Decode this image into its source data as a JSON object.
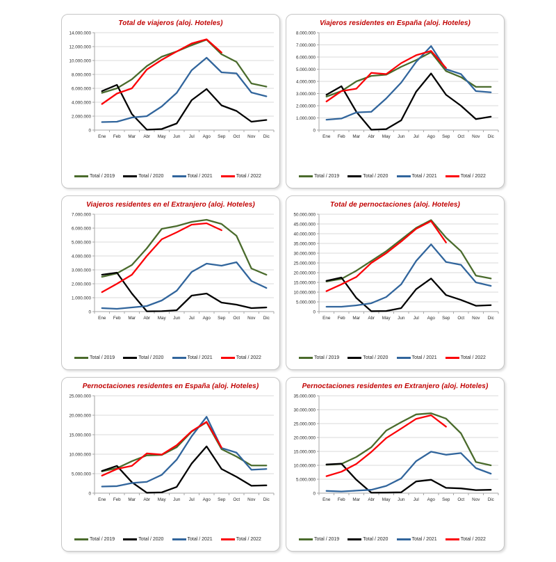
{
  "page": {
    "background": "#ffffff"
  },
  "months": [
    "Ene",
    "Feb",
    "Mar",
    "Abr",
    "May",
    "Jun",
    "Jul",
    "Ago",
    "Sep",
    "Oct",
    "Nov",
    "Dic"
  ],
  "legend_labels": [
    "Total / 2019",
    "Total / 2020",
    "Total / 2021",
    "Total / 2022"
  ],
  "series_colors": {
    "y2019": "#4a6b2c",
    "y2020": "#000000",
    "y2021": "#31659c",
    "y2022": "#fb0006"
  },
  "styles": {
    "title_color": "#c00000",
    "grid_color": "#d9d9d9",
    "axis_color": "#a6a6a6",
    "tick_text_color": "#262626",
    "card_border": "#c6c6c6"
  },
  "chart_data": [
    {
      "type": "line",
      "title": "Total de viajeros (aloj. Hoteles)",
      "ymax": 14000000,
      "ystep": 2000000,
      "categories": [
        "Ene",
        "Feb",
        "Mar",
        "Abr",
        "May",
        "Jun",
        "Jul",
        "Ago",
        "Sep",
        "Oct",
        "Nov",
        "Dic"
      ],
      "series": [
        {
          "name": "Total / 2019",
          "color": "#4a6b2c",
          "values": [
            5350000,
            6000000,
            7300000,
            9200000,
            10550000,
            11300000,
            12200000,
            13000000,
            10900000,
            9800000,
            6700000,
            6250000
          ]
        },
        {
          "name": "Total / 2020",
          "color": "#000000",
          "values": [
            5600000,
            6500000,
            2300000,
            50000,
            150000,
            950000,
            4300000,
            5900000,
            3550000,
            2750000,
            1200000,
            1450000
          ]
        },
        {
          "name": "Total / 2021",
          "color": "#31659c",
          "values": [
            1150000,
            1200000,
            1800000,
            2000000,
            3400000,
            5350000,
            8600000,
            10400000,
            8300000,
            8150000,
            5400000,
            4850000
          ]
        },
        {
          "name": "Total / 2022",
          "color": "#fb0006",
          "values": [
            3750000,
            5250000,
            6000000,
            8700000,
            10100000,
            11300000,
            12450000,
            13050000,
            11150000
          ]
        }
      ]
    },
    {
      "type": "line",
      "title": "Viajeros residentes en España (aloj. Hoteles)",
      "ymax": 8000000,
      "ystep": 1000000,
      "categories": [
        "Ene",
        "Feb",
        "Mar",
        "Abr",
        "May",
        "Jun",
        "Jul",
        "Ago",
        "Sep",
        "Oct",
        "Nov",
        "Dic"
      ],
      "series": [
        {
          "name": "Total / 2019",
          "color": "#4a6b2c",
          "values": [
            2750000,
            3200000,
            4000000,
            4450000,
            4550000,
            5200000,
            5750000,
            6400000,
            4850000,
            4350000,
            3550000,
            3550000
          ]
        },
        {
          "name": "Total / 2020",
          "color": "#000000",
          "values": [
            2900000,
            3600000,
            1500000,
            30000,
            80000,
            800000,
            3150000,
            4650000,
            2900000,
            2000000,
            900000,
            1100000
          ]
        },
        {
          "name": "Total / 2021",
          "color": "#31659c",
          "values": [
            850000,
            950000,
            1450000,
            1500000,
            2600000,
            3900000,
            5600000,
            6900000,
            5000000,
            4600000,
            3200000,
            3100000
          ]
        },
        {
          "name": "Total / 2022",
          "color": "#fb0006",
          "values": [
            2350000,
            3200000,
            3400000,
            4700000,
            4600000,
            5500000,
            6150000,
            6500000,
            5100000
          ]
        }
      ]
    },
    {
      "type": "line",
      "title": "Viajeros residentes en el Extranjero (aloj. Hoteles)",
      "ymax": 7000000,
      "ystep": 1000000,
      "categories": [
        "Ene",
        "Feb",
        "Mar",
        "Abr",
        "May",
        "Jun",
        "Jul",
        "Ago",
        "Sep",
        "Oct",
        "Nov",
        "Dic"
      ],
      "series": [
        {
          "name": "Total / 2019",
          "color": "#4a6b2c",
          "values": [
            2500000,
            2750000,
            3350000,
            4550000,
            5950000,
            6150000,
            6450000,
            6600000,
            6300000,
            5450000,
            3100000,
            2650000
          ]
        },
        {
          "name": "Total / 2020",
          "color": "#000000",
          "values": [
            2650000,
            2800000,
            1300000,
            20000,
            30000,
            100000,
            1150000,
            1300000,
            650000,
            500000,
            250000,
            300000
          ]
        },
        {
          "name": "Total / 2021",
          "color": "#31659c",
          "values": [
            250000,
            200000,
            300000,
            400000,
            800000,
            1500000,
            2850000,
            3450000,
            3300000,
            3550000,
            2200000,
            1700000
          ]
        },
        {
          "name": "Total / 2022",
          "color": "#fb0006",
          "values": [
            1400000,
            2000000,
            2650000,
            4000000,
            5200000,
            5700000,
            6250000,
            6350000,
            5850000
          ]
        }
      ]
    },
    {
      "type": "line",
      "title": "Total de pernoctaciones (aloj. Hoteles)",
      "ymax": 50000000,
      "ystep": 5000000,
      "categories": [
        "Ene",
        "Feb",
        "Mar",
        "Abr",
        "May",
        "Jun",
        "Jul",
        "Ago",
        "Sep",
        "Oct",
        "Nov",
        "Dic"
      ],
      "series": [
        {
          "name": "Total / 2019",
          "color": "#4a6b2c",
          "values": [
            15500000,
            16800000,
            21000000,
            26000000,
            31000000,
            37000000,
            43000000,
            47000000,
            38000000,
            31000000,
            18500000,
            17000000
          ]
        },
        {
          "name": "Total / 2020",
          "color": "#000000",
          "values": [
            15800000,
            17500000,
            7000000,
            200000,
            300000,
            1800000,
            11500000,
            17000000,
            8500000,
            6000000,
            3000000,
            3300000
          ]
        },
        {
          "name": "Total / 2021",
          "color": "#31659c",
          "values": [
            2500000,
            2500000,
            3200000,
            4300000,
            7500000,
            14000000,
            26000000,
            34500000,
            25500000,
            24000000,
            15000000,
            13200000
          ]
        },
        {
          "name": "Total / 2022",
          "color": "#fb0006",
          "values": [
            10500000,
            14000000,
            17800000,
            25000000,
            30000000,
            36000000,
            42500000,
            46500000,
            35500000
          ]
        }
      ]
    },
    {
      "type": "line",
      "title": "Pernoctaciones residentes en España (aloj. Hoteles)",
      "ymax": 25000000,
      "ystep": 5000000,
      "categories": [
        "Ene",
        "Feb",
        "Mar",
        "Abr",
        "May",
        "Jun",
        "Jul",
        "Ago",
        "Sep",
        "Oct",
        "Nov",
        "Dic"
      ],
      "series": [
        {
          "name": "Total / 2019",
          "color": "#4a6b2c",
          "values": [
            5600000,
            6400000,
            8200000,
            9700000,
            9800000,
            11800000,
            15800000,
            18200000,
            11300000,
            9400000,
            7100000,
            7100000
          ]
        },
        {
          "name": "Total / 2020",
          "color": "#000000",
          "values": [
            5700000,
            7000000,
            2800000,
            100000,
            200000,
            1600000,
            7600000,
            12000000,
            6200000,
            4200000,
            1900000,
            2000000
          ]
        },
        {
          "name": "Total / 2021",
          "color": "#31659c",
          "values": [
            1700000,
            1800000,
            2600000,
            2900000,
            4700000,
            8600000,
            14600000,
            19600000,
            11600000,
            10400000,
            6000000,
            6200000
          ]
        },
        {
          "name": "Total / 2022",
          "color": "#fb0006",
          "values": [
            4500000,
            6200000,
            7000000,
            10200000,
            9900000,
            12300000,
            15900000,
            18300000,
            11700000
          ]
        }
      ]
    },
    {
      "type": "line",
      "title": "Pernoctaciones residentes en Extranjero (aloj. Hoteles)",
      "ymax": 35000000,
      "ystep": 5000000,
      "categories": [
        "Ene",
        "Feb",
        "Mar",
        "Abr",
        "May",
        "Jun",
        "Jul",
        "Ago",
        "Sep",
        "Oct",
        "Nov",
        "Dic"
      ],
      "series": [
        {
          "name": "Total / 2019",
          "color": "#4a6b2c",
          "values": [
            10200000,
            10500000,
            13000000,
            16500000,
            22500000,
            25500000,
            28300000,
            28700000,
            26800000,
            21500000,
            11200000,
            10000000
          ]
        },
        {
          "name": "Total / 2020",
          "color": "#000000",
          "values": [
            10300000,
            10600000,
            4800000,
            150000,
            200000,
            300000,
            4200000,
            4800000,
            1900000,
            1700000,
            1100000,
            1200000
          ]
        },
        {
          "name": "Total / 2021",
          "color": "#31659c",
          "values": [
            800000,
            600000,
            900000,
            1200000,
            2600000,
            5300000,
            11500000,
            14900000,
            13800000,
            14400000,
            9000000,
            7000000
          ]
        },
        {
          "name": "Total / 2022",
          "color": "#fb0006",
          "values": [
            6100000,
            7700000,
            10500000,
            14800000,
            19800000,
            23200000,
            26700000,
            28000000,
            23900000
          ]
        }
      ]
    }
  ]
}
